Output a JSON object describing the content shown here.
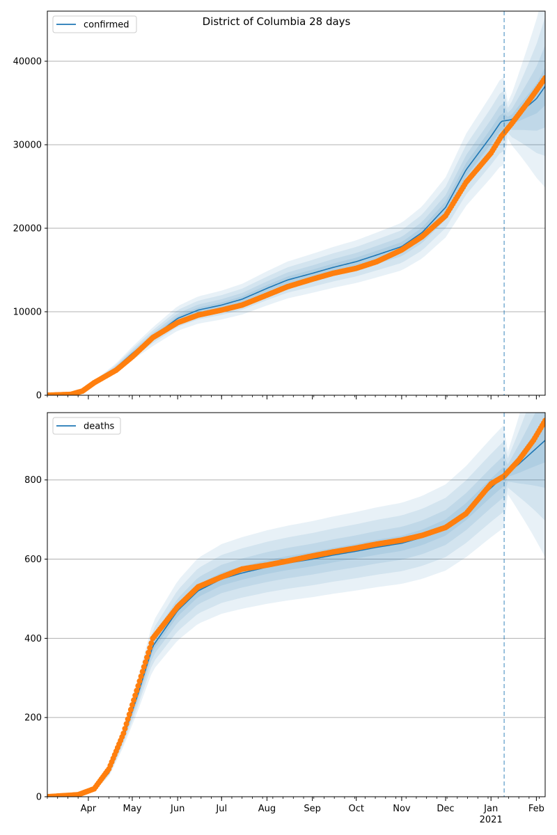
{
  "title": "District of Columbia 28 days",
  "x_tick_labels": [
    {
      "label": "Apr",
      "date": "2020-04-01"
    },
    {
      "label": "May",
      "date": "2020-05-01"
    },
    {
      "label": "Jun",
      "date": "2020-06-01"
    },
    {
      "label": "Jul",
      "date": "2020-07-01"
    },
    {
      "label": "Aug",
      "date": "2020-08-01"
    },
    {
      "label": "Sep",
      "date": "2020-09-01"
    },
    {
      "label": "Oct",
      "date": "2020-10-01"
    },
    {
      "label": "Nov",
      "date": "2020-11-01"
    },
    {
      "label": "Dec",
      "date": "2020-12-01"
    },
    {
      "label": "Jan",
      "date": "2021-01-01"
    },
    {
      "label": "Feb",
      "date": "2021-02-01"
    }
  ],
  "year_label": "2021",
  "colors": {
    "model_line": "#1f77b4",
    "observed": "#ff7f0e",
    "band": "#1f77b4",
    "grid": "#b0b0b0",
    "cutoff_line": "#1f77b4"
  },
  "chart_data": [
    {
      "type": "line",
      "panel": "top",
      "series": [
        {
          "name": "confirmed",
          "kind": "model",
          "x": [
            "2020-03-04",
            "2020-03-25",
            "2020-04-05",
            "2020-04-20",
            "2020-05-01",
            "2020-05-15",
            "2020-06-01",
            "2020-06-15",
            "2020-07-01",
            "2020-07-15",
            "2020-08-01",
            "2020-08-15",
            "2020-09-01",
            "2020-09-15",
            "2020-10-01",
            "2020-10-15",
            "2020-11-01",
            "2020-11-15",
            "2020-12-01",
            "2020-12-15",
            "2021-01-01",
            "2021-01-08",
            "2021-01-15",
            "2021-02-01",
            "2021-02-07"
          ],
          "y": [
            0,
            150,
            1500,
            3300,
            5000,
            7000,
            9200,
            10200,
            10800,
            11500,
            12800,
            13800,
            14600,
            15300,
            16000,
            16800,
            17800,
            19500,
            22500,
            27000,
            31000,
            32800,
            33000,
            35500,
            37000
          ]
        },
        {
          "kind": "observed",
          "x": [
            "2020-03-04",
            "2020-03-20",
            "2020-03-28",
            "2020-04-05",
            "2020-04-20",
            "2020-05-01",
            "2020-05-15",
            "2020-06-01",
            "2020-06-15",
            "2020-07-01",
            "2020-07-15",
            "2020-08-01",
            "2020-08-15",
            "2020-09-01",
            "2020-09-15",
            "2020-10-01",
            "2020-10-15",
            "2020-11-01",
            "2020-11-15",
            "2020-12-01",
            "2020-12-15",
            "2021-01-01",
            "2021-01-08",
            "2021-01-15",
            "2021-01-25",
            "2021-02-01",
            "2021-02-07"
          ],
          "y": [
            0,
            100,
            500,
            1500,
            3000,
            4600,
            6900,
            8700,
            9600,
            10200,
            10800,
            12000,
            13000,
            13900,
            14600,
            15200,
            16000,
            17400,
            19000,
            21500,
            25500,
            29000,
            31000,
            32500,
            34800,
            36500,
            38000
          ]
        }
      ],
      "xlim": [
        "2020-03-04",
        "2021-02-07"
      ],
      "ylim": [
        0,
        46000
      ],
      "yticks": [
        0,
        10000,
        20000,
        30000,
        40000
      ],
      "cutoff_date": "2021-01-10",
      "grid": "y",
      "legend": "top-left"
    },
    {
      "type": "line",
      "panel": "bottom",
      "series": [
        {
          "name": "deaths",
          "kind": "model",
          "x": [
            "2020-03-04",
            "2020-03-25",
            "2020-04-05",
            "2020-04-15",
            "2020-04-25",
            "2020-05-05",
            "2020-05-15",
            "2020-06-01",
            "2020-06-15",
            "2020-07-01",
            "2020-07-15",
            "2020-08-01",
            "2020-08-15",
            "2020-09-01",
            "2020-09-15",
            "2020-10-01",
            "2020-10-15",
            "2020-11-01",
            "2020-11-15",
            "2020-12-01",
            "2020-12-15",
            "2021-01-01",
            "2021-01-10",
            "2021-01-20",
            "2021-02-07"
          ],
          "y": [
            0,
            5,
            20,
            60,
            150,
            260,
            380,
            470,
            520,
            550,
            565,
            580,
            590,
            600,
            610,
            620,
            630,
            640,
            655,
            680,
            720,
            780,
            810,
            840,
            900
          ]
        },
        {
          "kind": "observed",
          "x": [
            "2020-03-04",
            "2020-03-25",
            "2020-04-05",
            "2020-04-15",
            "2020-04-25",
            "2020-05-05",
            "2020-05-15",
            "2020-06-01",
            "2020-06-15",
            "2020-07-01",
            "2020-07-15",
            "2020-08-01",
            "2020-08-15",
            "2020-09-01",
            "2020-09-15",
            "2020-10-01",
            "2020-10-15",
            "2020-11-01",
            "2020-11-15",
            "2020-12-01",
            "2020-12-15",
            "2021-01-01",
            "2021-01-10",
            "2021-01-20",
            "2021-01-30",
            "2021-02-07"
          ],
          "y": [
            0,
            5,
            20,
            70,
            160,
            280,
            400,
            480,
            530,
            555,
            575,
            585,
            595,
            608,
            618,
            628,
            638,
            648,
            660,
            680,
            715,
            790,
            810,
            850,
            900,
            950
          ]
        }
      ],
      "xlim": [
        "2020-03-04",
        "2021-02-07"
      ],
      "ylim": [
        0,
        970
      ],
      "yticks": [
        0,
        200,
        400,
        600,
        800
      ],
      "cutoff_date": "2021-01-10",
      "grid": "y",
      "legend": "top-left"
    }
  ]
}
